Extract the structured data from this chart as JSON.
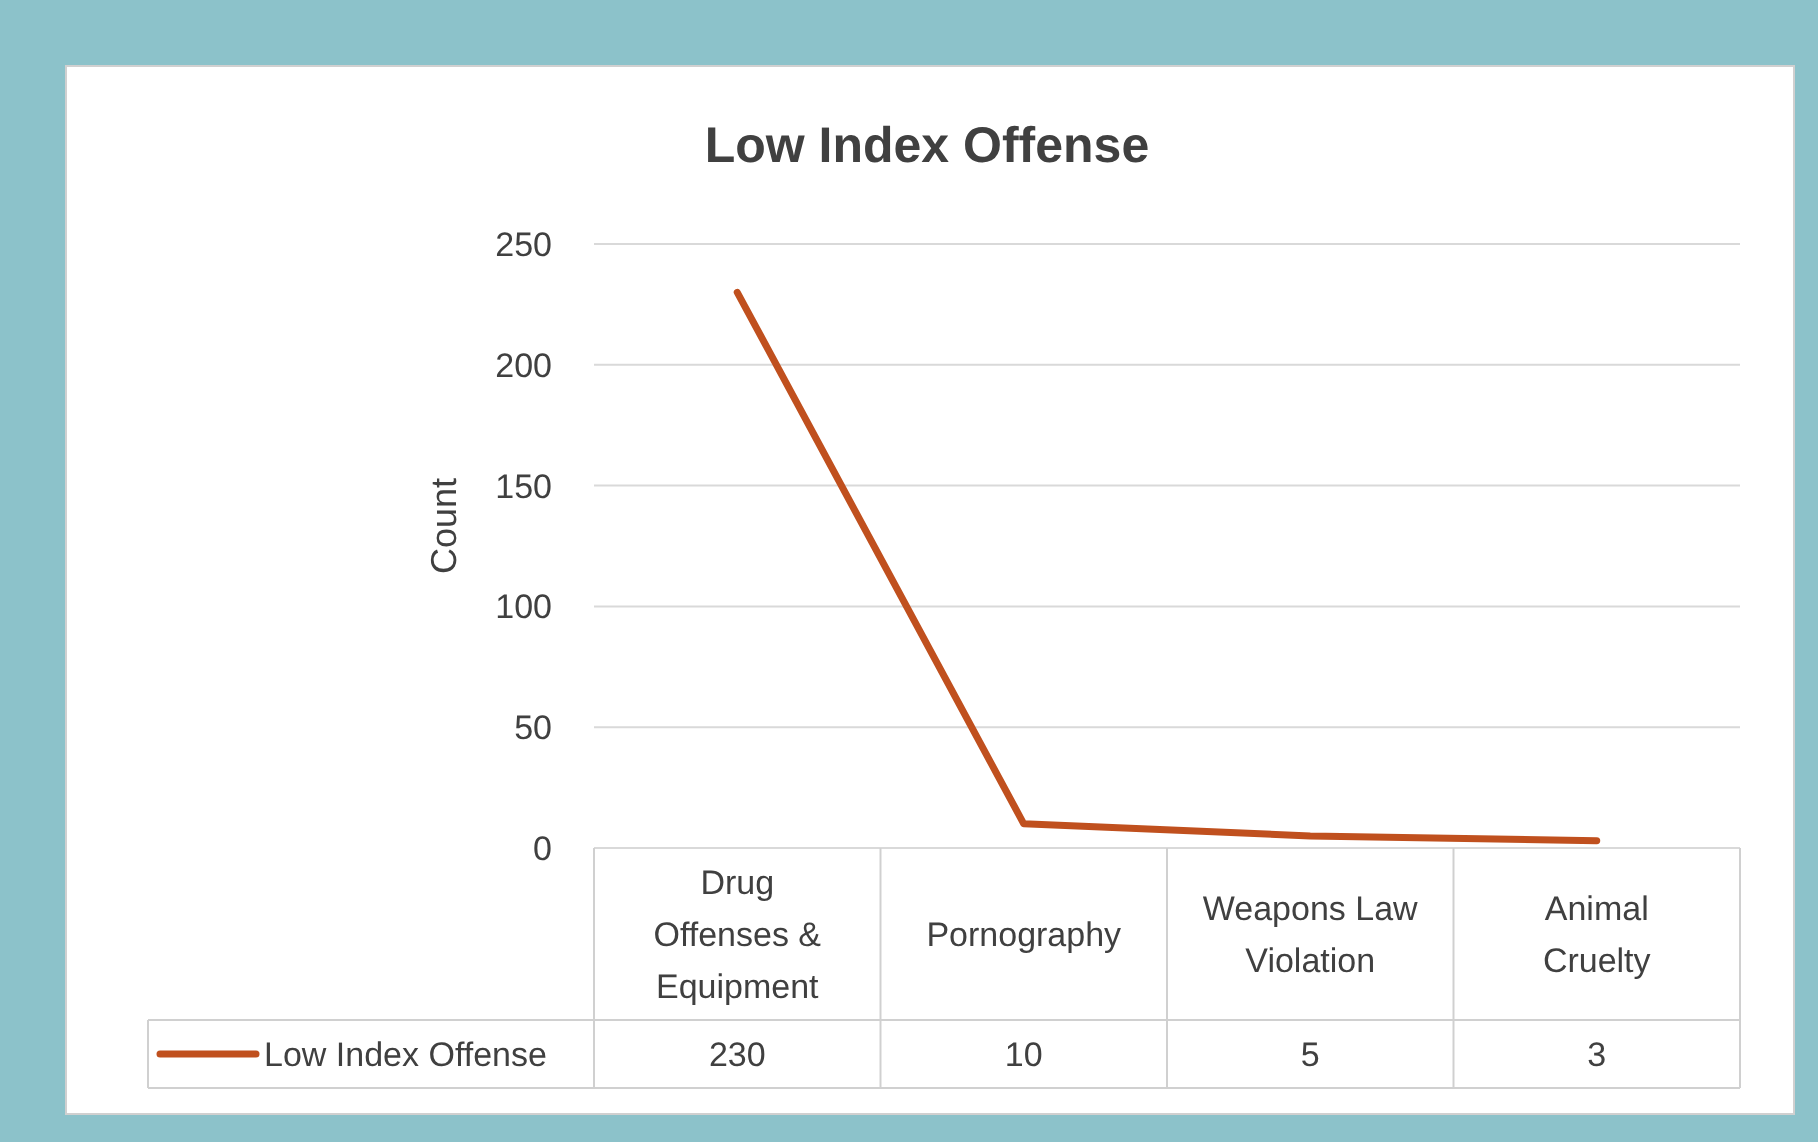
{
  "chart_data": {
    "type": "line",
    "title": "Low Index Offense",
    "ylabel": "Count",
    "categories": [
      "Drug Offenses & Equipment",
      "Pornography",
      "Weapons Law Violation",
      "Animal Cruelty"
    ],
    "series": [
      {
        "name": "Low Index Offense",
        "color": "#c0501e",
        "values": [
          230,
          10,
          5,
          3
        ]
      }
    ],
    "ylim": [
      0,
      250
    ],
    "yticks": [
      0,
      50,
      100,
      150,
      200,
      250
    ],
    "grid": "y",
    "legend": "bottom",
    "data_labels": true,
    "marker": "none",
    "line_style": "solid"
  }
}
